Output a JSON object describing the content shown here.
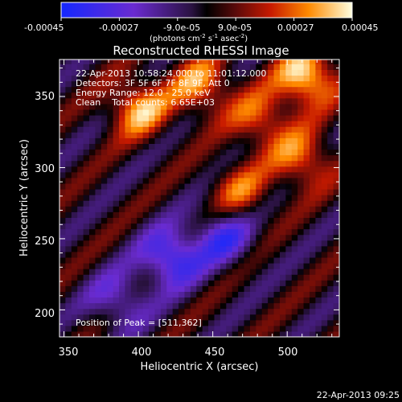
{
  "chart_data": {
    "type": "heatmap",
    "title": "Reconstructed RHESSI Image",
    "xlabel": "Heliocentric X (arcsec)",
    "ylabel": "Heliocentric Y (arcsec)",
    "xlim": [
      347,
      535
    ],
    "ylim": [
      181,
      376
    ],
    "x_ticks": [
      "350",
      "400",
      "450",
      "500"
    ],
    "y_ticks": [
      "200",
      "250",
      "300",
      "350"
    ],
    "colorbar": {
      "range": [
        -0.00045,
        0.00045
      ],
      "ticks": [
        "-0.00045",
        "-0.00027",
        "-9.0e-05",
        "9.0e-05",
        "0.00027",
        "0.00045"
      ],
      "label": "(photons cm",
      "label_sup1": "-2",
      "label_mid": " s",
      "label_sup2": "-1",
      "label_end": " asec",
      "label_sup3": "-2",
      "label_close": ")"
    },
    "annotations": {
      "time_range": "22-Apr-2013 10:58:24.000 to 11:01:12.000",
      "detectors": "Detectors: 3F 5F 6F 7F 8F 9F, Att 0",
      "energy": "Energy Range: 12.0 - 25.0 keV",
      "clean": "Clean    Total counts: 6.65E+03",
      "peak": "Position of Peak = [511,362]"
    },
    "peak": [
      511,
      362
    ],
    "bright_sources": [
      {
        "x": 511,
        "y": 362,
        "value": 0.00045
      },
      {
        "x": 398,
        "y": 340,
        "value": 0.00036
      },
      {
        "x": 440,
        "y": 356,
        "value": 0.00032
      },
      {
        "x": 508,
        "y": 304,
        "value": 0.0003
      },
      {
        "x": 480,
        "y": 332,
        "value": 0.00027
      },
      {
        "x": 466,
        "y": 282,
        "value": 0.00024
      }
    ],
    "dim_regions": [
      {
        "x": 420,
        "y": 235,
        "value": -0.0004
      },
      {
        "x": 455,
        "y": 250,
        "value": -0.0003
      },
      {
        "x": 385,
        "y": 205,
        "value": -0.00025
      }
    ]
  },
  "footer_timestamp": "22-Apr-2013 09:25"
}
